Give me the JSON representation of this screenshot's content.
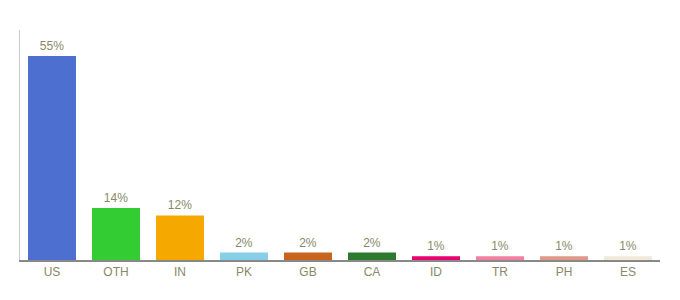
{
  "chart_data": {
    "type": "bar",
    "categories": [
      "US",
      "OTH",
      "IN",
      "PK",
      "GB",
      "CA",
      "ID",
      "TR",
      "PH",
      "ES"
    ],
    "values": [
      55,
      14,
      12,
      2,
      2,
      2,
      1,
      1,
      1,
      1
    ],
    "value_labels": [
      "55%",
      "14%",
      "12%",
      "2%",
      "2%",
      "2%",
      "1%",
      "1%",
      "1%",
      "1%"
    ],
    "colors": [
      "#4d6fd0",
      "#33cc33",
      "#f5a800",
      "#87ceeb",
      "#c8641e",
      "#2d7a2d",
      "#e8006e",
      "#f080a0",
      "#e09888",
      "#f0ead8"
    ],
    "ylim": [
      0,
      62
    ],
    "yticks": [],
    "tick_labels": "x",
    "data_labels": true,
    "grid": false
  }
}
